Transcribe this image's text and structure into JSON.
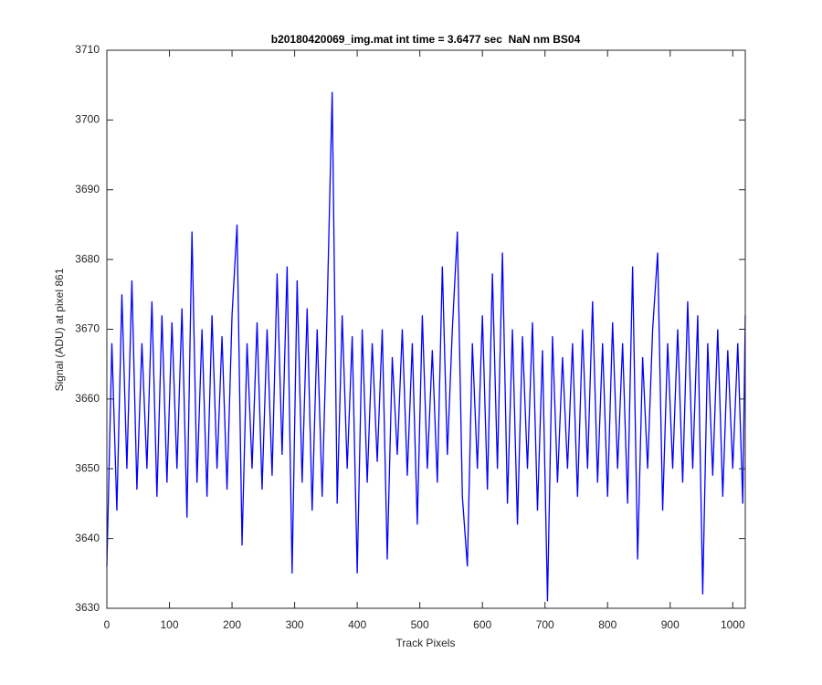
{
  "chart_data": {
    "type": "line",
    "title": "b20180420069_img.mat int time = 3.6477 sec  NaN nm BS04",
    "xlabel": "Track Pixels",
    "ylabel": "Signal (ADU) at pixel 861",
    "x": [
      0,
      8,
      16,
      24,
      32,
      40,
      48,
      56,
      64,
      72,
      80,
      88,
      96,
      104,
      112,
      120,
      128,
      136,
      144,
      152,
      160,
      168,
      176,
      184,
      192,
      200,
      208,
      216,
      224,
      232,
      240,
      248,
      256,
      264,
      272,
      280,
      288,
      296,
      304,
      312,
      320,
      328,
      336,
      344,
      352,
      360,
      368,
      376,
      384,
      392,
      400,
      408,
      416,
      424,
      432,
      440,
      448,
      456,
      464,
      472,
      480,
      488,
      496,
      504,
      512,
      520,
      528,
      536,
      544,
      552,
      560,
      568,
      576,
      584,
      592,
      600,
      608,
      616,
      624,
      632,
      640,
      648,
      656,
      664,
      672,
      680,
      688,
      696,
      704,
      712,
      720,
      728,
      736,
      744,
      752,
      760,
      768,
      776,
      784,
      792,
      800,
      808,
      816,
      824,
      832,
      840,
      848,
      856,
      864,
      872,
      880,
      888,
      896,
      904,
      912,
      920,
      928,
      936,
      944,
      952,
      960,
      968,
      976,
      984,
      992,
      1000,
      1008,
      1016,
      1020
    ],
    "series": [
      {
        "name": "signal",
        "color": "#0000ff",
        "values": [
          3636,
          3668,
          3644,
          3675,
          3650,
          3677,
          3647,
          3668,
          3650,
          3674,
          3646,
          3672,
          3648,
          3671,
          3650,
          3673,
          3643,
          3684,
          3648,
          3670,
          3646,
          3672,
          3650,
          3669,
          3647,
          3672,
          3685,
          3639,
          3668,
          3650,
          3671,
          3647,
          3670,
          3649,
          3678,
          3652,
          3679,
          3635,
          3677,
          3648,
          3673,
          3644,
          3670,
          3646,
          3673,
          3704,
          3645,
          3672,
          3650,
          3669,
          3635,
          3670,
          3648,
          3668,
          3651,
          3670,
          3637,
          3666,
          3652,
          3670,
          3649,
          3668,
          3642,
          3672,
          3650,
          3667,
          3648,
          3679,
          3652,
          3670,
          3684,
          3646,
          3636,
          3668,
          3650,
          3672,
          3647,
          3678,
          3650,
          3681,
          3645,
          3670,
          3642,
          3669,
          3650,
          3671,
          3644,
          3667,
          3631,
          3669,
          3648,
          3666,
          3650,
          3668,
          3646,
          3670,
          3650,
          3674,
          3648,
          3668,
          3646,
          3671,
          3650,
          3668,
          3645,
          3679,
          3637,
          3666,
          3650,
          3670,
          3681,
          3644,
          3668,
          3650,
          3670,
          3648,
          3674,
          3650,
          3672,
          3632,
          3668,
          3649,
          3670,
          3646,
          3667,
          3650,
          3668,
          3645,
          3672
        ]
      }
    ],
    "xlim": [
      0,
      1020
    ],
    "ylim": [
      3630,
      3710
    ],
    "xticks": [
      0,
      100,
      200,
      300,
      400,
      500,
      600,
      700,
      800,
      900,
      1000
    ],
    "yticks": [
      3630,
      3640,
      3650,
      3660,
      3670,
      3680,
      3690,
      3700,
      3710
    ]
  }
}
